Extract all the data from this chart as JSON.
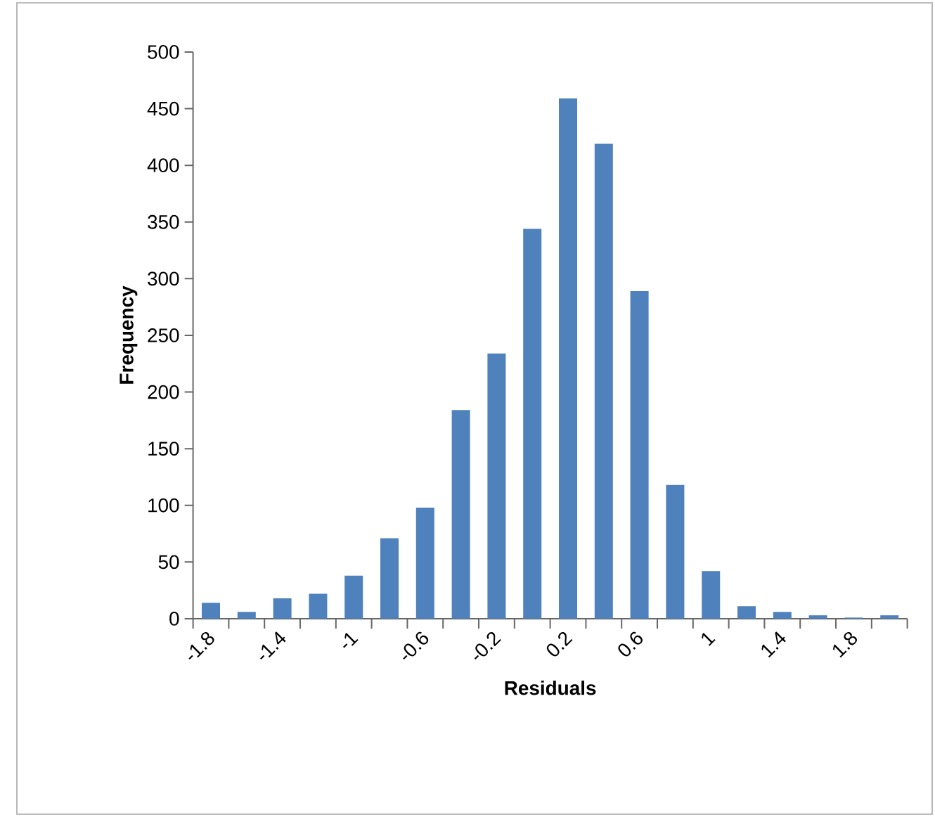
{
  "chart_data": {
    "type": "bar",
    "xlabel": "Residuals",
    "ylabel": "Frequency",
    "categories": [
      "-1.8",
      null,
      "-1.4",
      null,
      "-1",
      null,
      "-0.6",
      null,
      "-0.2",
      null,
      "0.2",
      null,
      "0.6",
      null,
      "1",
      null,
      "1.4",
      null,
      "1.8",
      null
    ],
    "values": [
      14,
      6,
      18,
      22,
      38,
      71,
      98,
      184,
      234,
      344,
      459,
      419,
      289,
      118,
      42,
      11,
      6,
      3,
      1,
      3
    ],
    "color": "#4f81bd",
    "ylim": [
      0,
      500
    ],
    "yticks": [
      0,
      50,
      100,
      150,
      200,
      250,
      300,
      350,
      400,
      450,
      500
    ]
  }
}
